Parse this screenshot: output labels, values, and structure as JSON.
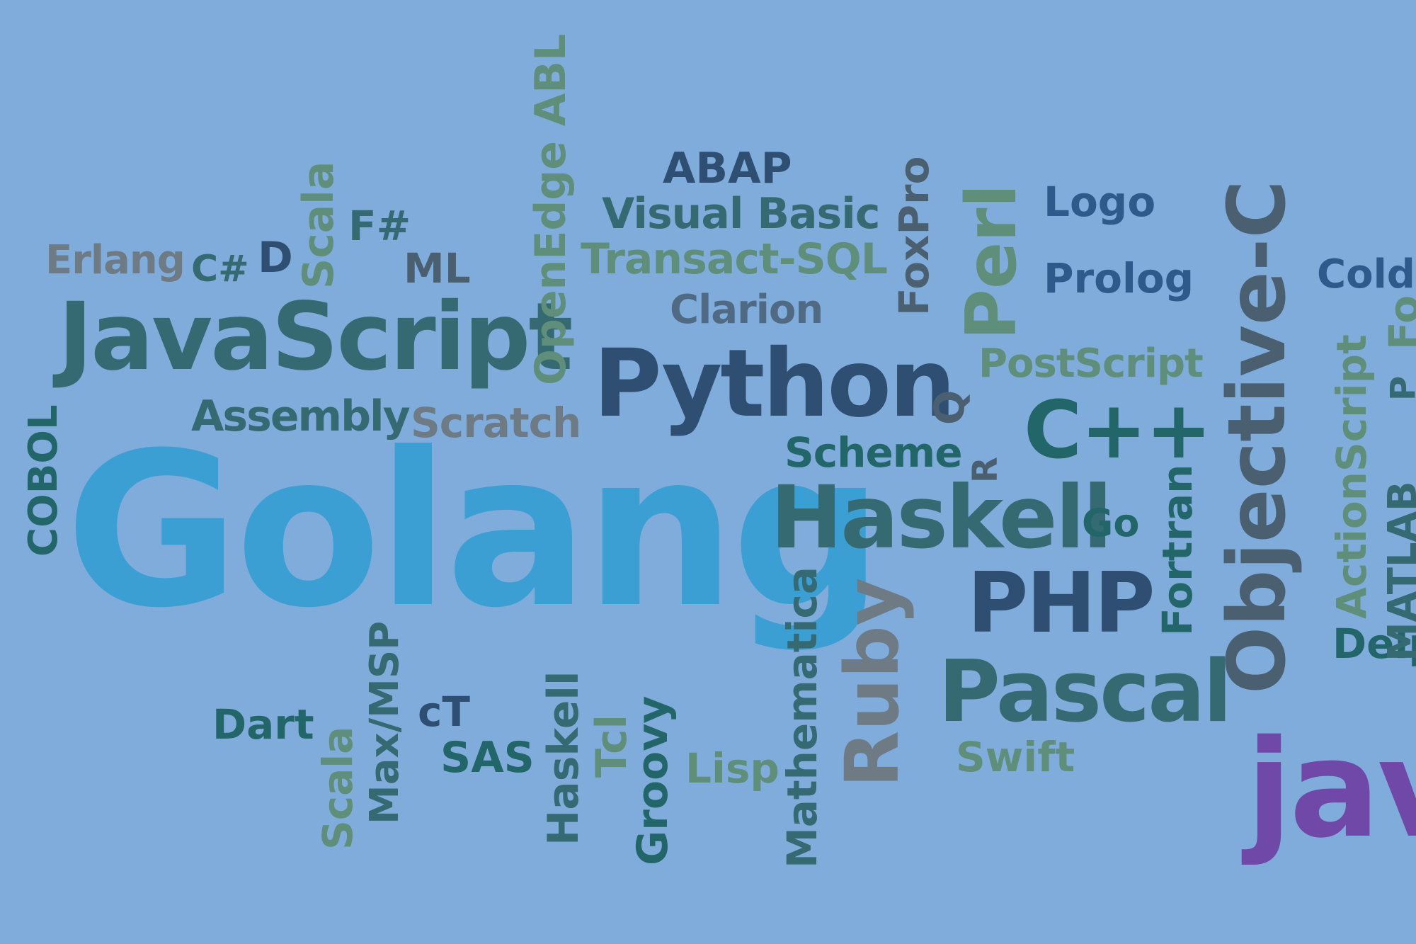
{
  "cloud": {
    "words": {
      "golang": "Golang",
      "javascript": "JavaScript",
      "python": "Python",
      "objective_c": "Objective-C",
      "haskell_big": "Haskell",
      "pascal": "Pascal",
      "php": "PHP",
      "cpp": "C++",
      "ruby": "Ruby",
      "perl": "Perl",
      "java": "java",
      "assembly": "Assembly",
      "scratch": "Scratch",
      "cobol": "COBOL",
      "erlang": "Erlang",
      "csharp": "C#",
      "d": "D",
      "scala_top": "Scala",
      "fsharp": "F#",
      "ml": "ML",
      "openedge": "OpenEdge ABL",
      "abap": "ABAP",
      "visual_basic": "Visual Basic",
      "transact_sql": "Transact-SQL",
      "clarion": "Clarion",
      "foxpro": "FoxPro",
      "logo": "Logo",
      "prolog": "Prolog",
      "coldfusion": "Cold",
      "postscript": "PostScript",
      "q": "Q",
      "scheme": "Scheme",
      "r": "R",
      "go": "Go",
      "fortran": "Fortran",
      "actionscript": "ActionScript",
      "matlab": "MATLAB",
      "delphi": "Delp",
      "fo": "Fo",
      "p": "P",
      "dart": "Dart",
      "scala_bottom": "Scala",
      "max_msp": "Max/MSP",
      "ct": "cT",
      "sas": "SAS",
      "haskell_small": "Haskell",
      "tcl": "Tcl",
      "groovy": "Groovy",
      "lisp": "Lisp",
      "mathematica": "Mathematica",
      "swift": "Swift"
    }
  }
}
